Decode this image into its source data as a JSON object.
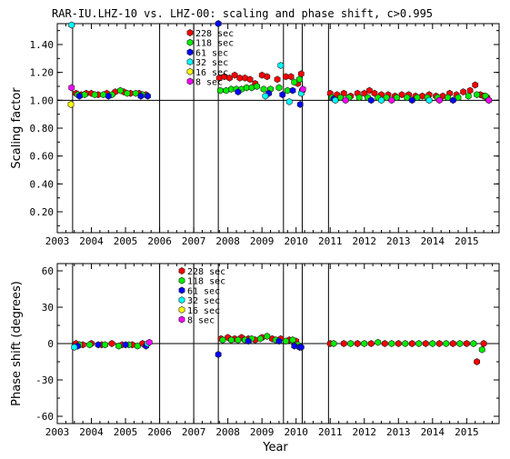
{
  "title": "RAR-IU.LHZ-10 vs. LHZ-00: scaling and phase shift, c>0.995",
  "shared_xlabel": "Year",
  "colors": {
    "228 sec": "#ff0000",
    "118 sec": "#00ee00",
    "61 sec": "#0000ff",
    "32 sec": "#00ffff",
    "16 sec": "#ffff00",
    "8 sec": "#ff00ff"
  },
  "chart_data": [
    {
      "type": "scatter",
      "title": "RAR-IU.LHZ-10 vs. LHZ-00: scaling and phase shift, c>0.995",
      "xlabel": "",
      "ylabel": "Scaling factor",
      "xlim": [
        2003.0,
        2015.95
      ],
      "ylim": [
        0.05,
        1.55
      ],
      "xticks": [
        "2003",
        "2004",
        "2005",
        "2006",
        "2007",
        "2008",
        "2009",
        "2010",
        "2011",
        "2012",
        "2013",
        "2014",
        "2015"
      ],
      "yticks": [
        "0.20",
        "0.40",
        "0.60",
        "0.80",
        "1.00",
        "1.20",
        "1.40"
      ],
      "ytick_values": [
        0.2,
        0.4,
        0.6,
        0.8,
        1.0,
        1.2,
        1.4
      ],
      "reference_line_y": 1.0,
      "event_lines_x": [
        2003.45,
        2006.0,
        2007.0,
        2007.72,
        2009.63,
        2010.18,
        2010.95
      ],
      "legend": [
        "228 sec",
        "118 sec",
        "61 sec",
        "32 sec",
        "16 sec",
        "8 sec"
      ],
      "legend_position": "top-left-inside",
      "series": [
        {
          "name": "228 sec",
          "points": [
            [
              2003.55,
              1.05
            ],
            [
              2003.7,
              1.04
            ],
            [
              2003.85,
              1.05
            ],
            [
              2004.0,
              1.05
            ],
            [
              2004.2,
              1.04
            ],
            [
              2004.45,
              1.05
            ],
            [
              2004.7,
              1.06
            ],
            [
              2004.95,
              1.06
            ],
            [
              2005.15,
              1.05
            ],
            [
              2005.4,
              1.05
            ],
            [
              2005.6,
              1.04
            ],
            [
              2007.75,
              1.16
            ],
            [
              2007.9,
              1.17
            ],
            [
              2008.05,
              1.16
            ],
            [
              2008.2,
              1.18
            ],
            [
              2008.35,
              1.16
            ],
            [
              2008.5,
              1.16
            ],
            [
              2008.65,
              1.15
            ],
            [
              2008.8,
              1.12
            ],
            [
              2009.0,
              1.18
            ],
            [
              2009.15,
              1.17
            ],
            [
              2009.45,
              1.15
            ],
            [
              2009.7,
              1.17
            ],
            [
              2009.85,
              1.17
            ],
            [
              2010.05,
              1.12
            ],
            [
              2010.15,
              1.19
            ],
            [
              2011.0,
              1.05
            ],
            [
              2011.2,
              1.04
            ],
            [
              2011.4,
              1.05
            ],
            [
              2011.6,
              1.03
            ],
            [
              2011.8,
              1.05
            ],
            [
              2012.0,
              1.05
            ],
            [
              2012.15,
              1.07
            ],
            [
              2012.3,
              1.05
            ],
            [
              2012.5,
              1.04
            ],
            [
              2012.7,
              1.04
            ],
            [
              2012.9,
              1.03
            ],
            [
              2013.1,
              1.04
            ],
            [
              2013.3,
              1.04
            ],
            [
              2013.5,
              1.03
            ],
            [
              2013.7,
              1.03
            ],
            [
              2013.9,
              1.04
            ],
            [
              2014.1,
              1.03
            ],
            [
              2014.3,
              1.03
            ],
            [
              2014.5,
              1.05
            ],
            [
              2014.7,
              1.04
            ],
            [
              2014.9,
              1.06
            ],
            [
              2015.1,
              1.07
            ],
            [
              2015.25,
              1.11
            ],
            [
              2015.4,
              1.04
            ],
            [
              2015.5,
              1.03
            ],
            [
              2015.6,
              1.02
            ]
          ]
        },
        {
          "name": "118 sec",
          "points": [
            [
              2003.6,
              1.04
            ],
            [
              2003.8,
              1.04
            ],
            [
              2004.1,
              1.04
            ],
            [
              2004.35,
              1.04
            ],
            [
              2004.6,
              1.04
            ],
            [
              2004.85,
              1.07
            ],
            [
              2005.05,
              1.05
            ],
            [
              2005.3,
              1.05
            ],
            [
              2005.5,
              1.04
            ],
            [
              2007.78,
              1.07
            ],
            [
              2007.95,
              1.07
            ],
            [
              2008.1,
              1.08
            ],
            [
              2008.25,
              1.08
            ],
            [
              2008.4,
              1.08
            ],
            [
              2008.55,
              1.09
            ],
            [
              2008.7,
              1.09
            ],
            [
              2008.85,
              1.1
            ],
            [
              2009.05,
              1.08
            ],
            [
              2009.25,
              1.08
            ],
            [
              2009.5,
              1.09
            ],
            [
              2009.75,
              1.07
            ],
            [
              2009.95,
              1.13
            ],
            [
              2010.1,
              1.15
            ],
            [
              2011.05,
              1.02
            ],
            [
              2011.3,
              1.02
            ],
            [
              2011.55,
              1.02
            ],
            [
              2011.85,
              1.02
            ],
            [
              2012.1,
              1.02
            ],
            [
              2012.4,
              1.02
            ],
            [
              2012.65,
              1.02
            ],
            [
              2012.95,
              1.02
            ],
            [
              2013.25,
              1.02
            ],
            [
              2013.55,
              1.02
            ],
            [
              2013.85,
              1.02
            ],
            [
              2014.15,
              1.02
            ],
            [
              2014.45,
              1.02
            ],
            [
              2014.75,
              1.02
            ],
            [
              2015.05,
              1.03
            ],
            [
              2015.3,
              1.04
            ],
            [
              2015.55,
              1.03
            ]
          ]
        },
        {
          "name": "61 sec",
          "points": [
            [
              2003.65,
              1.03
            ],
            [
              2004.5,
              1.03
            ],
            [
              2005.45,
              1.03
            ],
            [
              2005.65,
              1.03
            ],
            [
              2007.72,
              1.55
            ],
            [
              2008.3,
              1.06
            ],
            [
              2009.2,
              1.05
            ],
            [
              2009.6,
              1.04
            ],
            [
              2009.9,
              1.07
            ],
            [
              2010.12,
              0.97
            ],
            [
              2010.18,
              1.07
            ],
            [
              2011.1,
              1.01
            ],
            [
              2012.2,
              1.0
            ],
            [
              2013.4,
              1.0
            ],
            [
              2014.6,
              1.0
            ],
            [
              2015.65,
              1.0
            ]
          ]
        },
        {
          "name": "32 sec",
          "points": [
            [
              2003.42,
              1.54
            ],
            [
              2009.55,
              1.25
            ],
            [
              2009.8,
              0.99
            ],
            [
              2009.1,
              1.03
            ],
            [
              2010.15,
              1.05
            ],
            [
              2011.15,
              1.0
            ],
            [
              2012.5,
              1.0
            ],
            [
              2013.9,
              1.0
            ]
          ]
        },
        {
          "name": "16 sec",
          "points": [
            [
              2003.4,
              0.97
            ]
          ]
        },
        {
          "name": "8 sec",
          "points": [
            [
              2003.42,
              1.09
            ],
            [
              2010.2,
              1.08
            ],
            [
              2011.45,
              1.0
            ],
            [
              2012.8,
              1.0
            ],
            [
              2014.2,
              1.0
            ],
            [
              2015.65,
              1.0
            ]
          ]
        }
      ]
    },
    {
      "type": "scatter",
      "title": "",
      "xlabel": "Year",
      "ylabel": "Phase shift (degrees)",
      "xlim": [
        2003.0,
        2015.95
      ],
      "ylim": [
        -66,
        66
      ],
      "xticks": [
        "2003",
        "2004",
        "2005",
        "2006",
        "2007",
        "2008",
        "2009",
        "2010",
        "2011",
        "2012",
        "2013",
        "2014",
        "2015"
      ],
      "yticks": [
        "-60",
        "-30",
        "0",
        "30",
        "60"
      ],
      "ytick_values": [
        -60,
        -30,
        0,
        30,
        60
      ],
      "reference_line_y": 0,
      "event_lines_x": [
        2003.45,
        2006.0,
        2007.0,
        2007.72,
        2009.63,
        2010.18,
        2010.95
      ],
      "legend": [
        "228 sec",
        "118 sec",
        "61 sec",
        "32 sec",
        "16 sec",
        "8 sec"
      ],
      "legend_position": "top-left-inside",
      "series": [
        {
          "name": "228 sec",
          "points": [
            [
              2003.55,
              0
            ],
            [
              2003.75,
              -1
            ],
            [
              2004.0,
              0
            ],
            [
              2004.3,
              -1
            ],
            [
              2004.6,
              0
            ],
            [
              2004.9,
              -1
            ],
            [
              2005.2,
              -1
            ],
            [
              2005.5,
              0
            ],
            [
              2007.8,
              4
            ],
            [
              2008.0,
              5
            ],
            [
              2008.2,
              4
            ],
            [
              2008.4,
              5
            ],
            [
              2008.6,
              4
            ],
            [
              2008.8,
              3
            ],
            [
              2009.0,
              5
            ],
            [
              2009.3,
              4
            ],
            [
              2009.55,
              4
            ],
            [
              2009.8,
              3
            ],
            [
              2010.0,
              2
            ],
            [
              2011.0,
              0
            ],
            [
              2011.4,
              0
            ],
            [
              2011.8,
              0
            ],
            [
              2012.2,
              0
            ],
            [
              2012.6,
              0
            ],
            [
              2013.0,
              0
            ],
            [
              2013.4,
              0
            ],
            [
              2013.8,
              0
            ],
            [
              2014.2,
              0
            ],
            [
              2014.6,
              0
            ],
            [
              2015.0,
              0
            ],
            [
              2015.3,
              -15
            ],
            [
              2015.5,
              0
            ]
          ]
        },
        {
          "name": "118 sec",
          "points": [
            [
              2003.65,
              -1
            ],
            [
              2003.95,
              -1
            ],
            [
              2004.4,
              -1
            ],
            [
              2004.8,
              -2
            ],
            [
              2005.1,
              -1
            ],
            [
              2005.35,
              -2
            ],
            [
              2007.85,
              3
            ],
            [
              2008.1,
              3
            ],
            [
              2008.3,
              3
            ],
            [
              2008.5,
              3
            ],
            [
              2008.7,
              4
            ],
            [
              2008.95,
              4
            ],
            [
              2009.15,
              6
            ],
            [
              2009.4,
              3
            ],
            [
              2009.7,
              2
            ],
            [
              2009.9,
              3
            ],
            [
              2010.05,
              -1
            ],
            [
              2011.1,
              0
            ],
            [
              2011.6,
              0
            ],
            [
              2012.0,
              0
            ],
            [
              2012.4,
              1
            ],
            [
              2012.8,
              0
            ],
            [
              2013.2,
              0
            ],
            [
              2013.6,
              0
            ],
            [
              2014.0,
              0
            ],
            [
              2014.4,
              0
            ],
            [
              2014.8,
              0
            ],
            [
              2015.2,
              0
            ],
            [
              2015.45,
              -5
            ]
          ]
        },
        {
          "name": "61 sec",
          "points": [
            [
              2003.6,
              -2
            ],
            [
              2004.2,
              -1
            ],
            [
              2005.0,
              -1
            ],
            [
              2005.6,
              -2
            ],
            [
              2007.72,
              -9
            ],
            [
              2008.6,
              2
            ],
            [
              2009.5,
              2
            ],
            [
              2009.95,
              -2
            ],
            [
              2010.1,
              -3
            ],
            [
              2010.15,
              -3
            ]
          ]
        },
        {
          "name": "32 sec",
          "points": [
            [
              2003.5,
              -3
            ],
            [
              2005.65,
              0
            ]
          ]
        },
        {
          "name": "16 sec",
          "points": []
        },
        {
          "name": "8 sec",
          "points": [
            [
              2005.7,
              1
            ]
          ]
        }
      ]
    }
  ]
}
